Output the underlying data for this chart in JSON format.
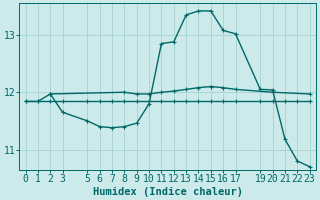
{
  "background_color": "#cceaea",
  "grid_color": "#aad4d4",
  "line_color": "#006868",
  "xlabel": "Humidex (Indice chaleur)",
  "xlabel_fontsize": 7.5,
  "tick_fontsize": 7,
  "ylabel_ticks": [
    11,
    12,
    13
  ],
  "xlim": [
    -0.5,
    23.5
  ],
  "ylim": [
    10.65,
    13.55
  ],
  "line1_x": [
    0,
    1,
    2,
    3,
    5,
    6,
    7,
    8,
    9,
    10,
    11,
    12,
    13,
    14,
    15,
    16,
    17,
    19,
    20,
    21,
    22,
    23
  ],
  "line1_y": [
    11.84,
    11.84,
    11.84,
    11.84,
    11.84,
    11.84,
    11.84,
    11.84,
    11.84,
    11.84,
    11.84,
    11.84,
    11.84,
    11.84,
    11.84,
    11.84,
    11.84,
    11.84,
    11.84,
    11.84,
    11.84,
    11.84
  ],
  "line2_x": [
    0,
    1,
    2,
    8,
    9,
    10,
    11,
    12,
    13,
    14,
    15,
    16,
    17,
    20,
    23
  ],
  "line2_y": [
    11.84,
    11.84,
    11.97,
    12.0,
    11.97,
    11.97,
    12.0,
    12.02,
    12.05,
    12.08,
    12.1,
    12.08,
    12.05,
    12.0,
    11.97
  ],
  "line3_x": [
    2,
    3,
    5,
    6,
    7,
    8,
    9,
    10,
    11,
    12,
    13,
    14,
    15,
    16,
    17,
    19,
    20,
    21,
    22,
    23
  ],
  "line3_y": [
    11.97,
    11.65,
    11.5,
    11.4,
    11.38,
    11.4,
    11.46,
    11.8,
    12.85,
    12.88,
    13.35,
    13.42,
    13.42,
    13.08,
    13.02,
    12.05,
    12.04,
    11.18,
    10.8,
    10.7
  ]
}
